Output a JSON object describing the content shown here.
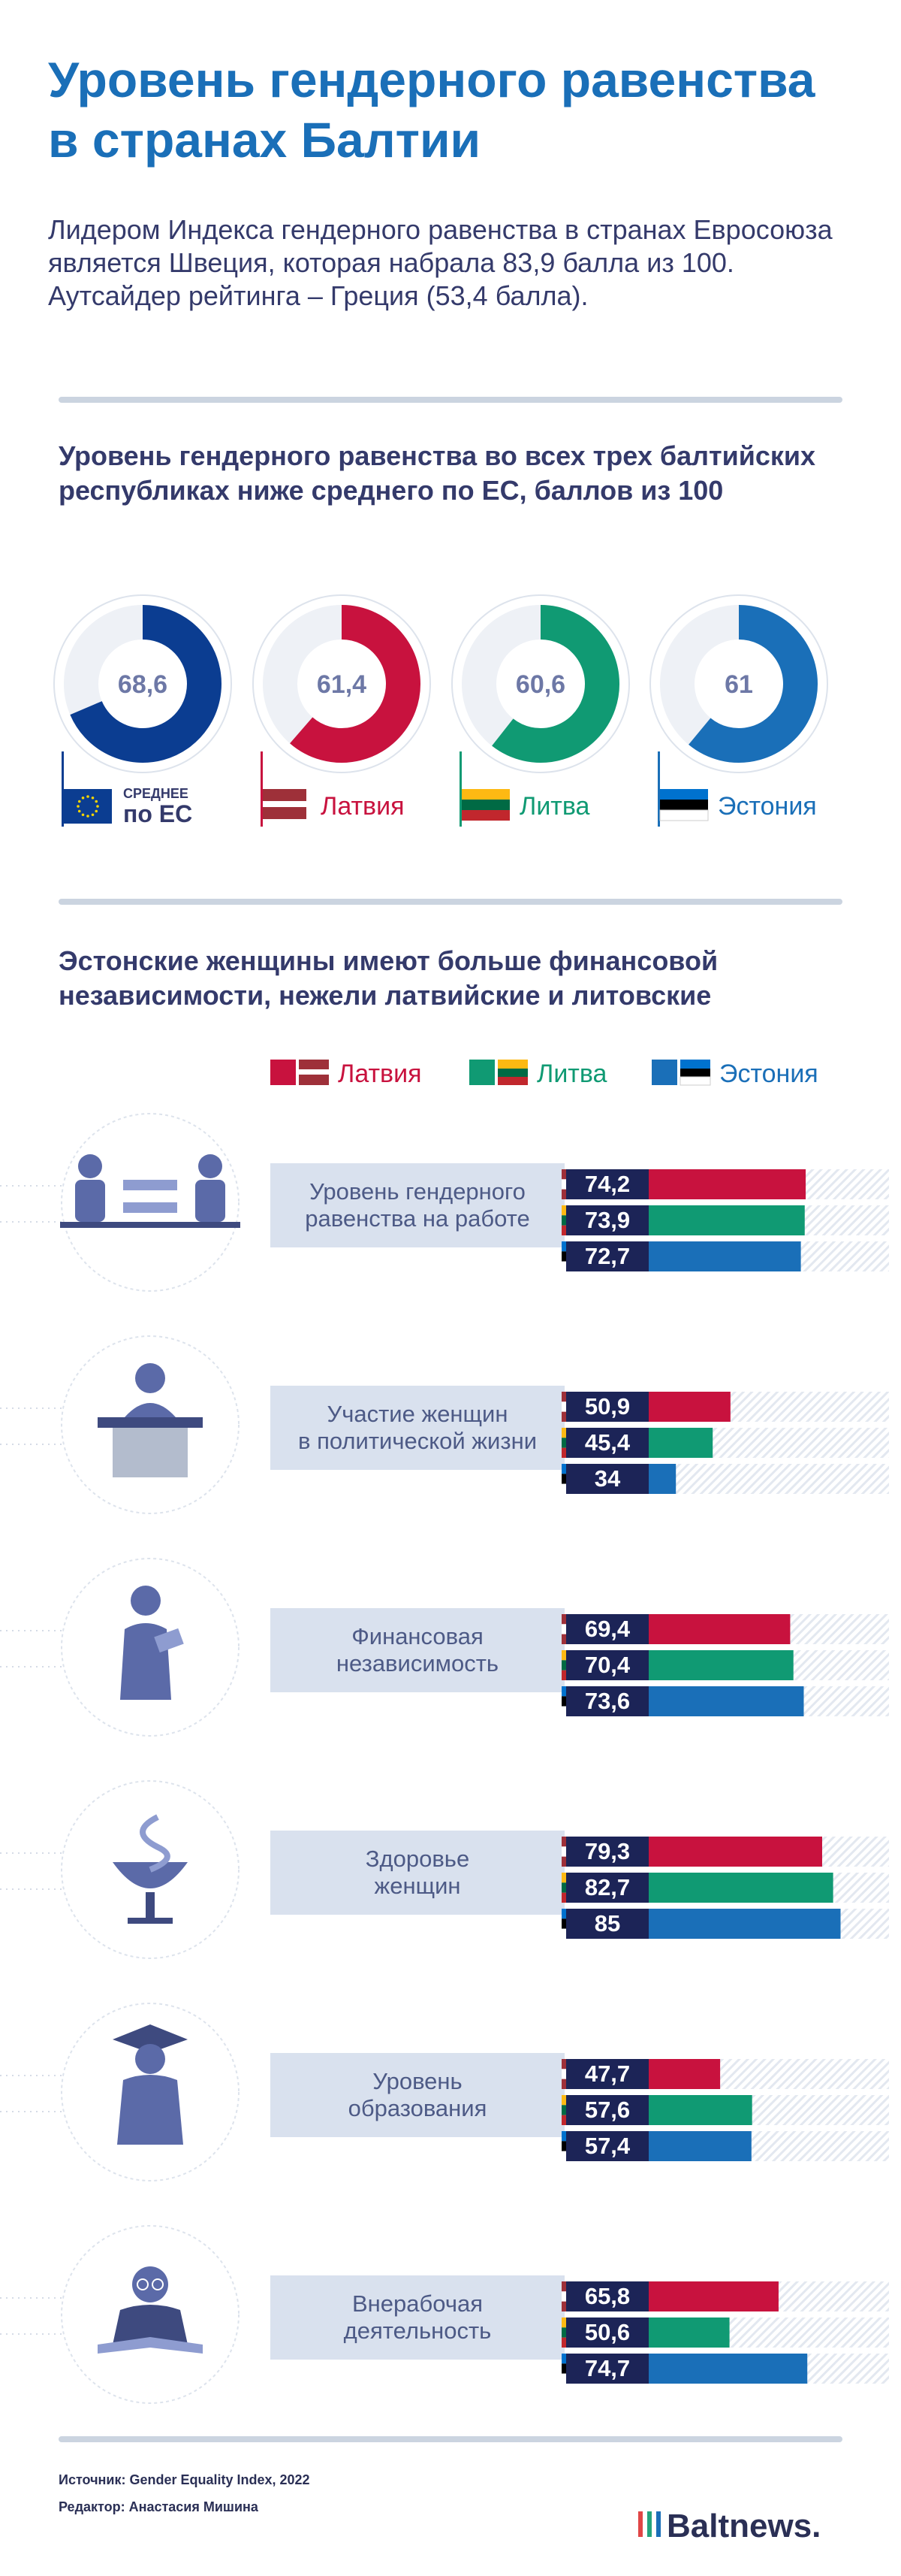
{
  "title": "Уровень гендерного равенства в странах Балтии",
  "intro": "Лидером Индекса гендерного равенства в странах Евросоюза является Швеция, которая набрала 83,9 балла из 100. Аутсайдер рейтинга – Греция (53,4 балла).",
  "section1_title": "Уровень гендерного равенства во всех трех балтийских республиках ниже среднего по ЕС, баллов из 100",
  "section2_title": "Эстонские женщины имеют больше финансовой независимости, нежели латвийские и литовские",
  "colors": {
    "eu": "#0b3d91",
    "latvia": "#c8123e",
    "lithuania": "#109a73",
    "estonia": "#1a6fb8",
    "text_dark": "#343a6b",
    "label_blue": "#4d5a86"
  },
  "chart_data": [
    {
      "type": "pie",
      "title": "Уровень гендерного равенства во всех трех балтийских республиках ниже среднего по ЕС, баллов из 100",
      "max": 100,
      "items": [
        {
          "value": 68.6,
          "display": "68,6",
          "label_top": "СРЕДНЕЕ",
          "label": "по ЕС",
          "flag": "eu-flag",
          "color": "#0b3d91"
        },
        {
          "value": 61.4,
          "display": "61,4",
          "label": "Латвия",
          "flag": "latvia-flag",
          "color": "#c8123e"
        },
        {
          "value": 60.6,
          "display": "60,6",
          "label": "Литва",
          "flag": "lithuania-flag",
          "color": "#109a73"
        },
        {
          "value": 61,
          "display": "61",
          "label": "Эстония",
          "flag": "estonia-flag",
          "color": "#1a6fb8"
        }
      ]
    },
    {
      "type": "bar",
      "title": "Эстонские женщины имеют больше финансовой независимости, нежели латвийские и литовские",
      "xlim": [
        0,
        100
      ],
      "legend": "top-right",
      "series": [
        {
          "name": "Латвия",
          "color": "#c8123e",
          "values": [
            74.2,
            50.9,
            69.4,
            79.3,
            47.7,
            65.8
          ],
          "display": [
            "74,2",
            "50,9",
            "69,4",
            "79,3",
            "47,7",
            "65,8"
          ]
        },
        {
          "name": "Литва",
          "color": "#109a73",
          "values": [
            73.9,
            45.4,
            70.4,
            82.7,
            57.6,
            50.6
          ],
          "display": [
            "73,9",
            "45,4",
            "70,4",
            "82,7",
            "57,6",
            "50,6"
          ]
        },
        {
          "name": "Эстония",
          "color": "#1a6fb8",
          "values": [
            72.7,
            34,
            73.6,
            85,
            57.4,
            74.7
          ],
          "display": [
            "72,7",
            "34",
            "73,6",
            "85",
            "57,4",
            "74,7"
          ]
        }
      ],
      "categories": [
        {
          "lines": [
            "Уровень гендерного",
            "равенства на работе"
          ],
          "icon": "workplace-equality-icon"
        },
        {
          "lines": [
            "Участие женщин",
            "в политической жизни"
          ],
          "icon": "politician-podium-icon"
        },
        {
          "lines": [
            "Финансовая",
            "независимость"
          ],
          "icon": "woman-with-money-icon"
        },
        {
          "lines": [
            "Здоровье",
            "женщин"
          ],
          "icon": "medicine-bowl-snake-icon"
        },
        {
          "lines": [
            "Уровень",
            "образования"
          ],
          "icon": "graduate-icon"
        },
        {
          "lines": [
            "Внерабочая",
            "деятельность"
          ],
          "icon": "woman-reading-icon"
        }
      ]
    }
  ],
  "footer": {
    "source": "Источник: Gender Equality Index, 2022",
    "editor": "Редактор: Анастасия Мишина",
    "brand": "Baltnews."
  }
}
